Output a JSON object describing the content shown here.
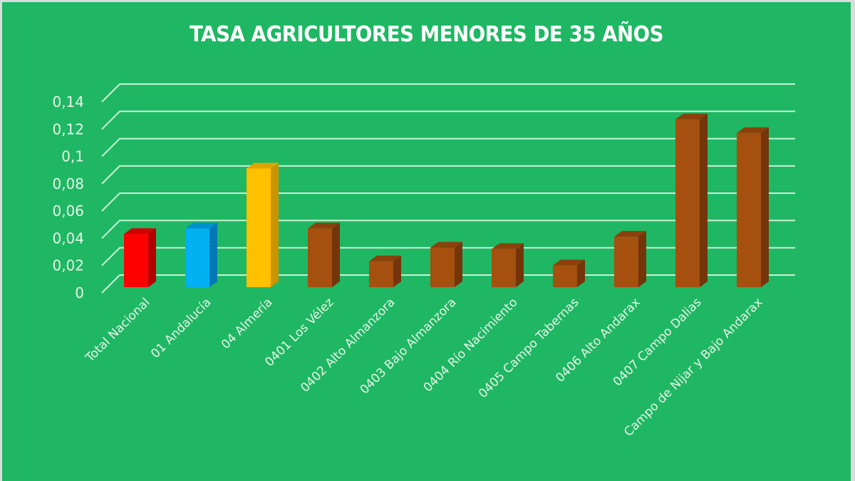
{
  "chart_data": {
    "type": "bar",
    "style": "3d-column",
    "title": "TASA AGRICULTORES MENORES DE 35 AÑOS",
    "xlabel": "",
    "ylabel": "",
    "ylim": [
      0,
      0.14
    ],
    "yticks": [
      "0",
      "0,02",
      "0,04",
      "0,06",
      "0,08",
      "0,1",
      "0,12",
      "0,14"
    ],
    "grid": true,
    "legend": "none",
    "categories": [
      "Total Nacional",
      "01 Andalucía",
      "04 Almería",
      "0401 Los Vélez",
      "0402 Alto Almanzora",
      "0403 Bajo Almanzora",
      "0404 Río Nacimiento",
      "0405 Campo Tabernas",
      "0406 Alto Andarax",
      "0407 Campo Dalias",
      "Campo de Nijar y Bajo Andarax"
    ],
    "values": [
      0.039,
      0.043,
      0.087,
      0.043,
      0.019,
      0.029,
      0.028,
      0.016,
      0.037,
      0.123,
      0.113
    ],
    "bar_colors": [
      "#ff0000",
      "#00b0f0",
      "#ffc000",
      "#a5500f",
      "#a5500f",
      "#a5500f",
      "#a5500f",
      "#a5500f",
      "#a5500f",
      "#a5500f",
      "#a5500f"
    ],
    "side_colors": [
      "#b50000",
      "#0078b4",
      "#c99400",
      "#74350a",
      "#74350a",
      "#74350a",
      "#74350a",
      "#74350a",
      "#74350a",
      "#74350a",
      "#74350a"
    ],
    "top_colors": [
      "#d40000",
      "#0092cf",
      "#dfa600",
      "#8a410c",
      "#8a410c",
      "#8a410c",
      "#8a410c",
      "#8a410c",
      "#8a410c",
      "#8a410c",
      "#8a410c"
    ]
  },
  "colors": {
    "background": "#1fb763",
    "gridline": "#c9f2d7",
    "text": "#ffffff"
  }
}
